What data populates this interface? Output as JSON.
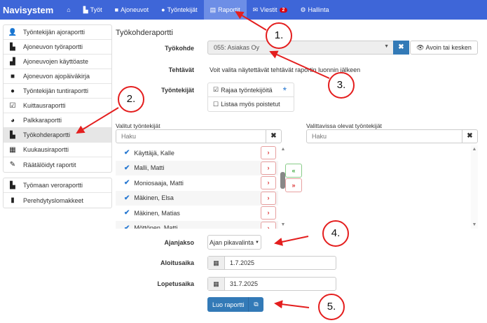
{
  "nav": {
    "brand": "Navisystem",
    "items": [
      {
        "label": "",
        "icon": "home-icon"
      },
      {
        "label": "Työt",
        "icon": "industry-icon"
      },
      {
        "label": "Ajoneuvot",
        "icon": "truck-icon"
      },
      {
        "label": "Työntekijät",
        "icon": "user-icon"
      },
      {
        "label": "Raportit",
        "icon": "report-icon",
        "active": true
      },
      {
        "label": "Viestit",
        "icon": "envelope-icon",
        "badge": "2"
      },
      {
        "label": "Hallinta",
        "icon": "gear-icon"
      }
    ]
  },
  "sidebar": {
    "group1": [
      {
        "label": "Työntekijän ajoraportti",
        "icon": "user-truck-icon"
      },
      {
        "label": "Ajoneuvon työraportti",
        "icon": "truck-industry-icon"
      },
      {
        "label": "Ajoneuvojen käyttöaste",
        "icon": "truck-chart-icon"
      },
      {
        "label": "Ajoneuvon ajopäiväkirja",
        "icon": "truck-icon"
      },
      {
        "label": "Työntekijän tuntiraportti",
        "icon": "user-icon"
      },
      {
        "label": "Kuittausraportti",
        "icon": "user-check-icon"
      },
      {
        "label": "Palkkaraportti",
        "icon": "piggy-bank-icon"
      },
      {
        "label": "Työkohderaportti",
        "icon": "industry-icon",
        "active": true
      },
      {
        "label": "Kuukausiraportti",
        "icon": "calendar-icon"
      },
      {
        "label": "Räätälöidyt raportit",
        "icon": "pencil-icon"
      }
    ],
    "group2": [
      {
        "label": "Työmaan veroraportti",
        "icon": "industry-icon"
      },
      {
        "label": "Perehdytyslomakkeet",
        "icon": "file-icon"
      }
    ]
  },
  "main": {
    "title": "Työkohderaportti",
    "tyokohde": {
      "label": "Työkohde",
      "value": "055: Asiakas Oy",
      "filter_button": "Avoin tai kesken"
    },
    "tehtavat": {
      "label": "Tehtävät",
      "text": "Voit valita näytettävät tehtävät raportin luonnin jälkeen"
    },
    "tyontekijat": {
      "label": "Työntekijät",
      "option1": "Rajaa työntekijöitä",
      "option2": "Listaa myös poistetut"
    },
    "selected": {
      "label": "Valitut työntekijät",
      "placeholder": "Haku",
      "items": [
        "Käyttäjä, Kalle",
        "Malli, Matti",
        "Moniosaaja, Matti",
        "Mäkinen, Elsa",
        "Mäkinen, Matias",
        "Möttönen, Matti"
      ]
    },
    "available": {
      "label": "Valittavissa olevat työntekijät",
      "placeholder": "Haku",
      "items": []
    },
    "ajanjakso": {
      "label": "Ajanjakso",
      "button": "Ajan pikavalinta"
    },
    "aloitusaika": {
      "label": "Aloitusaika",
      "value": "1.7.2025"
    },
    "lopetusaika": {
      "label": "Lopetusaika",
      "value": "31.7.2025"
    },
    "create_button": "Luo raportti"
  },
  "annotations": [
    "1.",
    "2.",
    "3.",
    "4.",
    "5."
  ],
  "colors": {
    "nav": "#3e66d8",
    "primary": "#337ab7",
    "annotation": "#e41e1e"
  }
}
